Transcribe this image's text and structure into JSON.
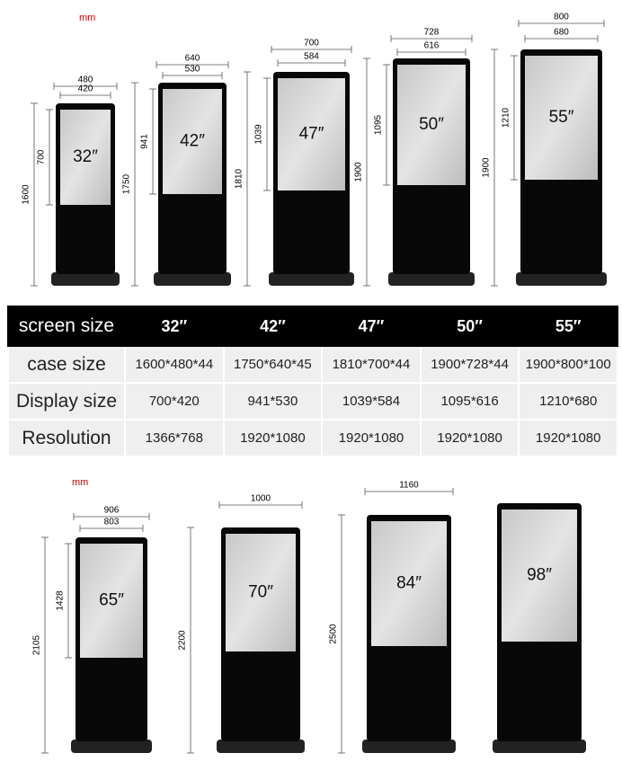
{
  "top": {
    "unit": "mm",
    "kiosks": [
      {
        "size": "32″",
        "width": "480",
        "screen_width": "420",
        "screen_height": "700",
        "height": "1600"
      },
      {
        "size": "42″",
        "width": "640",
        "screen_width": "530",
        "screen_height": "941",
        "height": "1750"
      },
      {
        "size": "47″",
        "width": "700",
        "screen_width": "584",
        "screen_height": "1039",
        "height": "1810"
      },
      {
        "size": "50″",
        "width": "728",
        "screen_width": "616",
        "screen_height": "1095",
        "height": "1900"
      },
      {
        "size": "55″",
        "width": "800",
        "screen_width": "680",
        "screen_height": "1210",
        "height": "1900"
      }
    ]
  },
  "table": {
    "header": [
      "screen size",
      "32″",
      "42″",
      "47″",
      "50″",
      "55″"
    ],
    "rows": [
      [
        "case  size",
        "1600*480*44",
        "1750*640*45",
        "1810*700*44",
        "1900*728*44",
        "1900*800*100"
      ],
      [
        "Display size",
        "700*420",
        "941*530",
        "1039*584",
        "1095*616",
        "1210*680"
      ],
      [
        "Resolution",
        "1366*768",
        "1920*1080",
        "1920*1080",
        "1920*1080",
        "1920*1080"
      ]
    ]
  },
  "bottom": {
    "unit": "mm",
    "kiosks": [
      {
        "size": "65″",
        "width": "906",
        "screen_width": "803",
        "screen_height": "1428",
        "height": "2105"
      },
      {
        "size": "70″",
        "width": "1000",
        "height": "2200"
      },
      {
        "size": "84″",
        "width": "1160",
        "height": "2500"
      },
      {
        "size": "98″"
      }
    ]
  }
}
